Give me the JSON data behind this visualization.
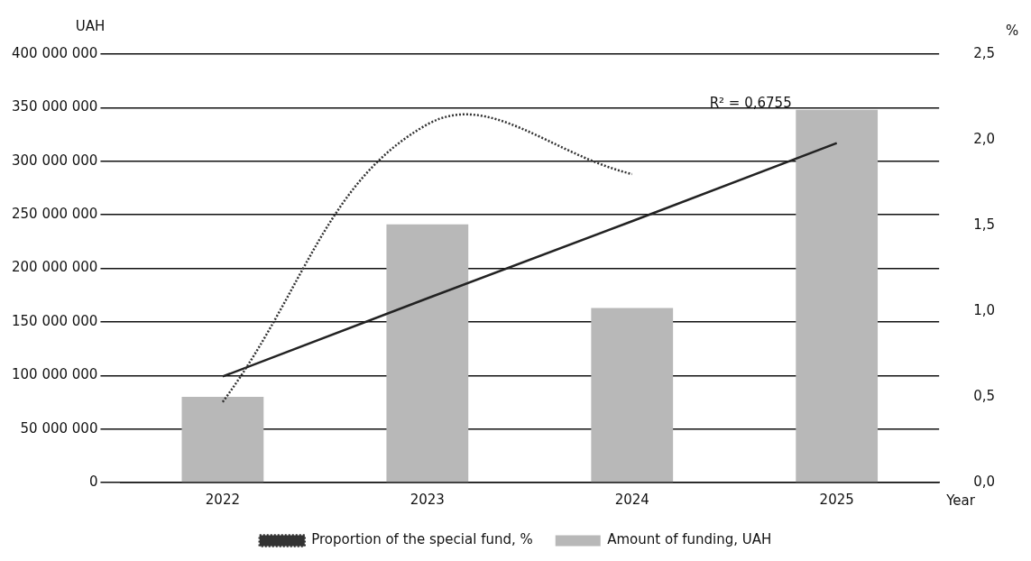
{
  "chart_data": {
    "type": "bar",
    "categories": [
      "2022",
      "2023",
      "2024",
      "2025"
    ],
    "xlabel": "Year",
    "ylabel": "UAH",
    "y2label": "%",
    "series": [
      {
        "name": "Amount of funding, UAH",
        "color": "#b8b8b8",
        "values": [
          80000000,
          241000000,
          163000000,
          348000000
        ]
      },
      {
        "name": "Proportion of the special fund, %",
        "type": "line",
        "axis": "y2",
        "line_style": "dotted",
        "color": "#333333",
        "values": [
          0.47,
          2.09,
          1.8,
          null
        ]
      },
      {
        "type": "line",
        "line_style": "solid",
        "color": "#222222",
        "values": [
          99000000,
          172000000,
          244000000,
          317000000
        ]
      }
    ],
    "ylim": [
      0,
      400000000
    ],
    "yticks": [
      {
        "value": 0,
        "label": "0"
      },
      {
        "value": 50000000,
        "label": "50 000 000"
      },
      {
        "value": 100000000,
        "label": "100 000 000"
      },
      {
        "value": 150000000,
        "label": "150 000 000"
      },
      {
        "value": 200000000,
        "label": "200 000 000"
      },
      {
        "value": 250000000,
        "label": "250 000 000"
      },
      {
        "value": 300000000,
        "label": "300 000 000"
      },
      {
        "value": 350000000,
        "label": "350 000 000"
      },
      {
        "value": 400000000,
        "label": "400 000 000"
      }
    ],
    "y2lim": [
      0,
      2.5
    ],
    "y2ticks": [
      {
        "value": 0,
        "label": "0,0"
      },
      {
        "value": 0.5,
        "label": "0,5"
      },
      {
        "value": 1,
        "label": "1,0"
      },
      {
        "value": 1.5,
        "label": "1,5"
      },
      {
        "value": 2,
        "label": "2,0"
      },
      {
        "value": 2.5,
        "label": "2,5"
      }
    ],
    "annotations": [
      "R² = 0,6755"
    ],
    "grid": "y",
    "legend": "bottom",
    "marker": "none"
  }
}
